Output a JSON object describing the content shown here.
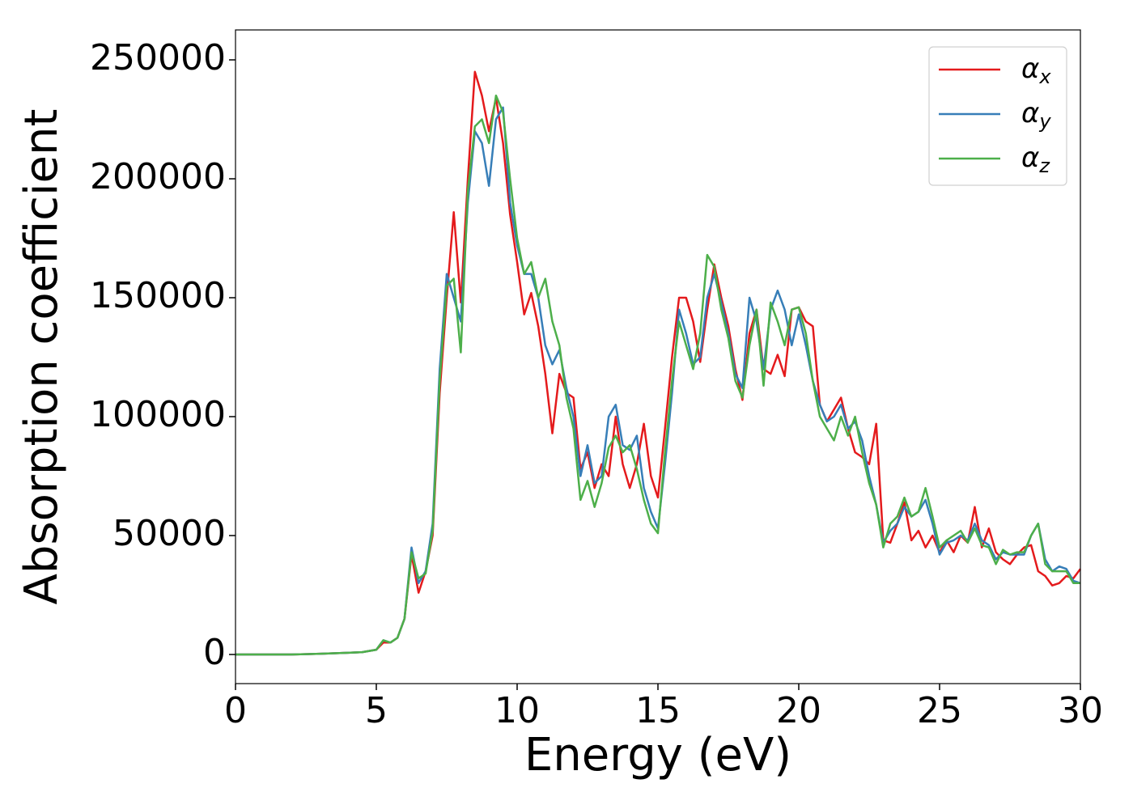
{
  "chart_data": {
    "type": "line",
    "xlabel": "Energy (eV)",
    "ylabel": "Absorption coefficient",
    "x": [
      0,
      1,
      2,
      3,
      4,
      4.5,
      5,
      5.25,
      5.5,
      5.75,
      6,
      6.25,
      6.5,
      6.75,
      7,
      7.25,
      7.5,
      7.75,
      8,
      8.25,
      8.5,
      8.75,
      9,
      9.25,
      9.5,
      9.75,
      10,
      10.25,
      10.5,
      10.75,
      11,
      11.25,
      11.5,
      11.75,
      12,
      12.25,
      12.5,
      12.75,
      13,
      13.25,
      13.5,
      13.75,
      14,
      14.25,
      14.5,
      14.75,
      15,
      15.25,
      15.5,
      15.75,
      16,
      16.25,
      16.5,
      16.75,
      17,
      17.25,
      17.5,
      17.75,
      18,
      18.25,
      18.5,
      18.75,
      19,
      19.25,
      19.5,
      19.75,
      20,
      20.25,
      20.5,
      20.75,
      21,
      21.25,
      21.5,
      21.75,
      22,
      22.25,
      22.5,
      22.75,
      23,
      23.25,
      23.5,
      23.75,
      24,
      24.25,
      24.5,
      24.75,
      25,
      25.25,
      25.5,
      25.75,
      26,
      26.25,
      26.5,
      26.75,
      27,
      27.25,
      27.5,
      27.75,
      28,
      28.25,
      28.5,
      28.75,
      29,
      29.25,
      29.5,
      29.75,
      30
    ],
    "series": [
      {
        "name": "αx",
        "color": "#e41a1c",
        "values": [
          0,
          0,
          0,
          300,
          700,
          1000,
          2000,
          5000,
          5000,
          7000,
          15000,
          42000,
          26000,
          35000,
          50000,
          110000,
          150000,
          186000,
          148000,
          200000,
          245000,
          235000,
          220000,
          234000,
          215000,
          185000,
          165000,
          143000,
          152000,
          138000,
          118000,
          93000,
          118000,
          110000,
          108000,
          78000,
          85000,
          70000,
          80000,
          75000,
          100000,
          80000,
          70000,
          80000,
          97000,
          75000,
          66000,
          95000,
          125000,
          150000,
          150000,
          140000,
          123000,
          145000,
          164000,
          150000,
          138000,
          120000,
          107000,
          135000,
          145000,
          120000,
          118000,
          126000,
          117000,
          145000,
          146000,
          140000,
          138000,
          105000,
          98000,
          103000,
          108000,
          95000,
          85000,
          83000,
          80000,
          97000,
          48000,
          47000,
          55000,
          64000,
          48000,
          52000,
          45000,
          50000,
          43000,
          48000,
          43000,
          50000,
          47000,
          62000,
          45000,
          53000,
          43000,
          40000,
          38000,
          42000,
          45000,
          46000,
          35000,
          33000,
          29000,
          30000,
          33000,
          32000,
          36000
        ]
      },
      {
        "name": "αy",
        "color": "#377eb8",
        "values": [
          0,
          0,
          0,
          300,
          700,
          1000,
          2000,
          6000,
          5000,
          7000,
          15000,
          45000,
          30000,
          35000,
          55000,
          120000,
          160000,
          150000,
          140000,
          190000,
          220000,
          215000,
          197000,
          225000,
          230000,
          190000,
          172000,
          160000,
          160000,
          150000,
          130000,
          122000,
          128000,
          112000,
          100000,
          75000,
          88000,
          72000,
          75000,
          100000,
          105000,
          88000,
          86000,
          92000,
          70000,
          60000,
          53000,
          80000,
          110000,
          145000,
          135000,
          122000,
          125000,
          150000,
          160000,
          148000,
          135000,
          118000,
          112000,
          150000,
          140000,
          120000,
          145000,
          153000,
          145000,
          130000,
          143000,
          130000,
          115000,
          105000,
          98000,
          100000,
          105000,
          95000,
          98000,
          90000,
          75000,
          63000,
          47000,
          52000,
          55000,
          62000,
          58000,
          60000,
          65000,
          55000,
          42000,
          47000,
          48000,
          50000,
          48000,
          55000,
          48000,
          46000,
          40000,
          43000,
          42000,
          42000,
          42000,
          50000,
          55000,
          40000,
          35000,
          37000,
          36000,
          31000,
          30000
        ]
      },
      {
        "name": "αz",
        "color": "#4daf4a",
        "values": [
          0,
          0,
          0,
          300,
          700,
          1000,
          2000,
          6000,
          5000,
          7000,
          15000,
          43000,
          32000,
          34000,
          52000,
          115000,
          155000,
          158000,
          127000,
          195000,
          222000,
          225000,
          215000,
          235000,
          228000,
          200000,
          175000,
          160000,
          165000,
          150000,
          158000,
          140000,
          130000,
          108000,
          95000,
          65000,
          73000,
          62000,
          72000,
          87000,
          92000,
          85000,
          88000,
          78000,
          65000,
          55000,
          51000,
          85000,
          115000,
          140000,
          130000,
          120000,
          135000,
          168000,
          163000,
          145000,
          133000,
          115000,
          108000,
          130000,
          145000,
          113000,
          148000,
          140000,
          130000,
          145000,
          146000,
          135000,
          115000,
          100000,
          95000,
          90000,
          100000,
          92000,
          100000,
          85000,
          72000,
          63000,
          45000,
          55000,
          58000,
          66000,
          58000,
          60000,
          70000,
          58000,
          45000,
          48000,
          50000,
          52000,
          47000,
          53000,
          46000,
          45000,
          38000,
          44000,
          42000,
          43000,
          43000,
          50000,
          55000,
          38000,
          35000,
          35000,
          35000,
          30000,
          30000
        ]
      }
    ],
    "xlim": [
      0,
      30
    ],
    "xticks": [
      0,
      5,
      10,
      15,
      20,
      25,
      30
    ],
    "ylim": [
      -12245,
      262585
    ],
    "yticks": [
      0,
      50000,
      100000,
      150000,
      200000,
      250000
    ],
    "legend": "upper right",
    "grid": false
  }
}
